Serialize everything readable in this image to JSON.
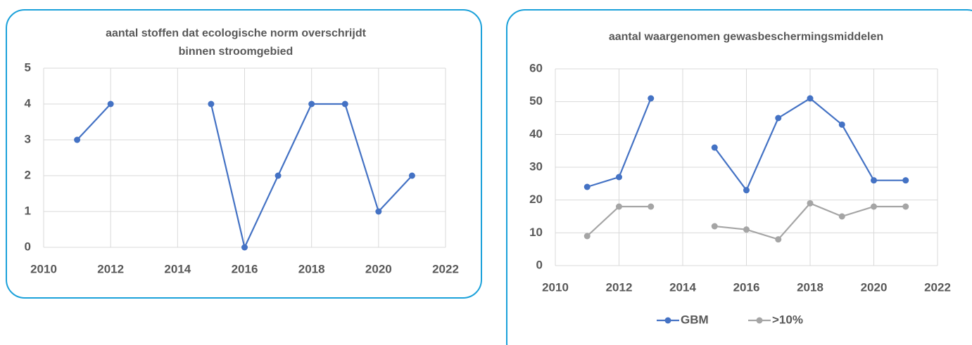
{
  "chart_data": [
    {
      "type": "line",
      "title": [
        "aantal stoffen dat ecologische norm overschrijdt",
        "binnen stroomgebied"
      ],
      "x": [
        2011,
        2012,
        2013,
        2014,
        2015,
        2016,
        2017,
        2018,
        2019,
        2020,
        2021
      ],
      "series": [
        {
          "color": "#4472c4",
          "values": [
            3,
            4,
            null,
            null,
            4,
            0,
            2,
            4,
            4,
            1,
            2
          ]
        }
      ],
      "xlim": [
        2010,
        2022
      ],
      "xticks": [
        2010,
        2012,
        2014,
        2016,
        2018,
        2020,
        2022
      ],
      "ylim": [
        0,
        5
      ],
      "yticks": [
        0,
        1,
        2,
        3,
        4,
        5
      ],
      "grid": true
    },
    {
      "type": "line",
      "title": [
        "aantal waargenomen gewasbeschermingsmiddelen"
      ],
      "x": [
        2011,
        2012,
        2013,
        2014,
        2015,
        2016,
        2017,
        2018,
        2019,
        2020,
        2021
      ],
      "series": [
        {
          "name": "GBM",
          "color": "#4472c4",
          "values": [
            24,
            27,
            51,
            null,
            36,
            23,
            45,
            51,
            43,
            26,
            26
          ]
        },
        {
          "name": ">10%",
          "color": "#a5a5a5",
          "values": [
            9,
            18,
            18,
            null,
            12,
            11,
            8,
            19,
            15,
            18,
            18
          ]
        }
      ],
      "xlim": [
        2010,
        2022
      ],
      "xticks": [
        2010,
        2012,
        2014,
        2016,
        2018,
        2020,
        2022
      ],
      "ylim": [
        0,
        60
      ],
      "yticks": [
        0,
        10,
        20,
        30,
        40,
        50,
        60
      ],
      "grid": true,
      "legend": "bottom"
    }
  ]
}
